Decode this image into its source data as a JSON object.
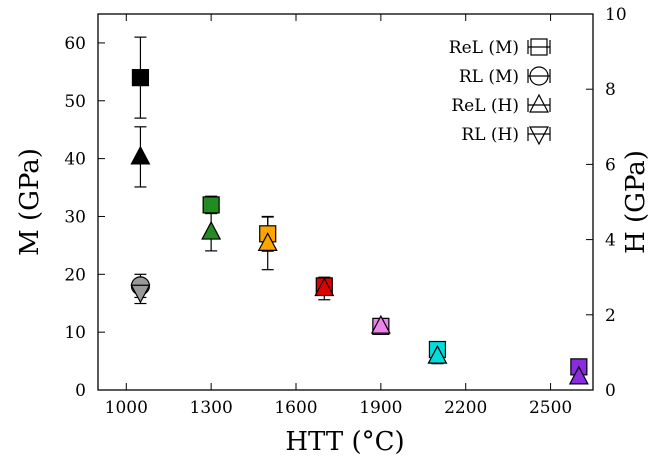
{
  "chart_data": {
    "type": "scatter",
    "xlabel": "HTT (°C)",
    "ylabel_left": "M (GPa)",
    "ylabel_right": "H (GPa)",
    "xlim": [
      900,
      2650
    ],
    "ylim_left": [
      0,
      65
    ],
    "ylim_right": [
      0,
      10
    ],
    "x_ticks": [
      1000,
      1300,
      1600,
      1900,
      2200,
      2500
    ],
    "y_left_ticks": [
      0,
      10,
      20,
      30,
      40,
      50,
      60
    ],
    "y_right_ticks": [
      0,
      2,
      4,
      6,
      8,
      10
    ],
    "legend_position": "top-right",
    "legend": [
      {
        "label": "ReL (M)",
        "marker": "square"
      },
      {
        "label": "RL (M)",
        "marker": "circle"
      },
      {
        "label": "ReL (H)",
        "marker": "triangle-up"
      },
      {
        "label": "RL (H)",
        "marker": "triangle-down"
      }
    ],
    "series": [
      {
        "name": "ReL (M)",
        "axis": "left",
        "marker": "square",
        "points": [
          {
            "x": 1050,
            "y": 54,
            "err": 7,
            "color": "#000000"
          },
          {
            "x": 1300,
            "y": 32,
            "err": 1.5,
            "color": "#228B22"
          },
          {
            "x": 1500,
            "y": 27,
            "err": 3,
            "color": "#FFA500"
          },
          {
            "x": 1700,
            "y": 18,
            "err": 1,
            "color": "#E00000"
          },
          {
            "x": 1900,
            "y": 11,
            "err": 1,
            "color": "#EE82EE"
          },
          {
            "x": 2100,
            "y": 7,
            "err": 1,
            "color": "#00DDDD"
          },
          {
            "x": 2600,
            "y": 4,
            "err": 0.5,
            "color": "#8A2BE2"
          }
        ]
      },
      {
        "name": "RL (M)",
        "axis": "left",
        "marker": "circle",
        "points": [
          {
            "x": 1050,
            "y": 18,
            "err": 2,
            "color": "#999999"
          }
        ]
      },
      {
        "name": "ReL (H)",
        "axis": "right",
        "marker": "triangle-up",
        "points": [
          {
            "x": 1050,
            "y": 6.2,
            "err": 0.8,
            "color": "#000000"
          },
          {
            "x": 1300,
            "y": 4.2,
            "err": 0.5,
            "color": "#228B22"
          },
          {
            "x": 1500,
            "y": 3.9,
            "err": 0.7,
            "color": "#FFA500"
          },
          {
            "x": 1700,
            "y": 2.7,
            "err": 0.3,
            "color": "#E00000"
          },
          {
            "x": 1900,
            "y": 1.7,
            "err": 0.2,
            "color": "#EE82EE"
          },
          {
            "x": 2100,
            "y": 0.9,
            "err": 0.2,
            "color": "#00DDDD"
          },
          {
            "x": 2600,
            "y": 0.35,
            "err": 0.1,
            "color": "#8A2BE2"
          }
        ]
      },
      {
        "name": "RL (H)",
        "axis": "right",
        "marker": "triangle-down",
        "points": [
          {
            "x": 1050,
            "y": 2.6,
            "err": 0.3,
            "color": "#999999"
          }
        ]
      }
    ]
  }
}
